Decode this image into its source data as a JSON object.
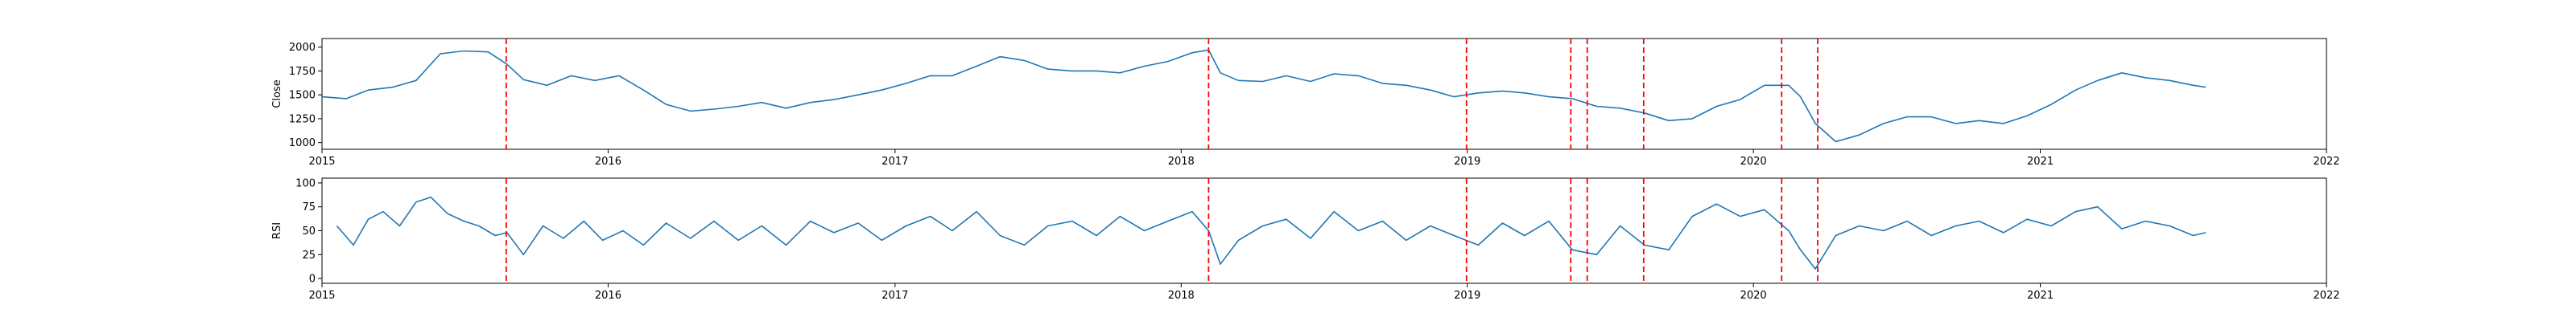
{
  "chart_data": [
    {
      "type": "line",
      "ylabel": "Close",
      "xlim": [
        "2015-01-01",
        "2022-01-01"
      ],
      "ylim": [
        930,
        2090
      ],
      "yticks": [
        1000,
        1250,
        1500,
        1750,
        2000
      ],
      "ytick_labels": [
        "1000",
        "1250",
        "1500",
        "1750",
        "2000"
      ],
      "xticks": [
        "2015-01-01",
        "2016-01-01",
        "2017-01-01",
        "2018-01-01",
        "2019-01-01",
        "2020-01-01",
        "2021-01-01",
        "2022-01-01"
      ],
      "xtick_labels": [
        "2015",
        "2016",
        "2017",
        "2018",
        "2019",
        "2020",
        "2021",
        "2022"
      ],
      "grid": false,
      "line_color": "#1f77b4",
      "marker_color": "#ff0000",
      "series": [
        {
          "x": [
            "2015-01-01",
            "2015-02-01",
            "2015-03-01",
            "2015-04-01",
            "2015-05-01",
            "2015-06-01",
            "2015-07-01",
            "2015-08-01",
            "2015-08-25",
            "2015-09-15",
            "2015-10-15",
            "2015-11-15",
            "2015-12-15",
            "2016-01-15",
            "2016-02-15",
            "2016-03-15",
            "2016-04-15",
            "2016-05-15",
            "2016-06-15",
            "2016-07-15",
            "2016-08-15",
            "2016-09-15",
            "2016-10-15",
            "2016-11-15",
            "2016-12-15",
            "2017-01-15",
            "2017-02-15",
            "2017-03-15",
            "2017-04-15",
            "2017-05-15",
            "2017-06-15",
            "2017-07-15",
            "2017-08-15",
            "2017-09-15",
            "2017-10-15",
            "2017-11-15",
            "2017-12-15",
            "2018-01-15",
            "2018-02-05",
            "2018-02-20",
            "2018-03-15",
            "2018-04-15",
            "2018-05-15",
            "2018-06-15",
            "2018-07-15",
            "2018-08-15",
            "2018-09-15",
            "2018-10-15",
            "2018-11-15",
            "2018-12-15",
            "2019-01-15",
            "2019-02-15",
            "2019-03-15",
            "2019-04-15",
            "2019-05-15",
            "2019-06-15",
            "2019-07-15",
            "2019-08-15",
            "2019-09-15",
            "2019-10-15",
            "2019-11-15",
            "2019-12-15",
            "2020-01-15",
            "2020-02-15",
            "2020-03-01",
            "2020-03-20",
            "2020-04-15",
            "2020-05-15",
            "2020-06-15",
            "2020-07-15",
            "2020-08-15",
            "2020-09-15",
            "2020-10-15",
            "2020-11-15",
            "2020-12-15",
            "2021-01-15",
            "2021-02-15",
            "2021-03-15",
            "2021-04-15",
            "2021-05-15",
            "2021-06-15",
            "2021-07-15",
            "2021-07-31"
          ],
          "y": [
            1480,
            1460,
            1550,
            1580,
            1650,
            1930,
            1960,
            1950,
            1820,
            1660,
            1600,
            1700,
            1650,
            1700,
            1550,
            1400,
            1330,
            1350,
            1380,
            1420,
            1360,
            1420,
            1450,
            1500,
            1550,
            1620,
            1700,
            1700,
            1800,
            1900,
            1860,
            1770,
            1750,
            1750,
            1730,
            1800,
            1850,
            1940,
            1970,
            1730,
            1650,
            1640,
            1700,
            1640,
            1720,
            1700,
            1620,
            1600,
            1550,
            1480,
            1520,
            1540,
            1520,
            1480,
            1460,
            1380,
            1360,
            1310,
            1230,
            1250,
            1380,
            1450,
            1600,
            1600,
            1480,
            1200,
            1010,
            1080,
            1200,
            1270,
            1270,
            1200,
            1230,
            1200,
            1280,
            1400,
            1550,
            1650,
            1730,
            1680,
            1650,
            1600,
            1580
          ]
        }
      ]
    },
    {
      "type": "line",
      "ylabel": "RSI",
      "xlim": [
        "2015-01-01",
        "2022-01-01"
      ],
      "ylim": [
        -5,
        105
      ],
      "yticks": [
        0,
        25,
        50,
        75,
        100
      ],
      "ytick_labels": [
        "0",
        "25",
        "50",
        "75",
        "100"
      ],
      "xticks": [
        "2015-01-01",
        "2016-01-01",
        "2017-01-01",
        "2018-01-01",
        "2019-01-01",
        "2020-01-01",
        "2021-01-01",
        "2022-01-01"
      ],
      "xtick_labels": [
        "2015",
        "2016",
        "2017",
        "2018",
        "2019",
        "2020",
        "2021",
        "2022"
      ],
      "grid": false,
      "line_color": "#1f77b4",
      "marker_color": "#ff0000",
      "series": [
        {
          "x": [
            "2015-01-20",
            "2015-02-10",
            "2015-03-01",
            "2015-03-20",
            "2015-04-10",
            "2015-05-01",
            "2015-05-20",
            "2015-06-10",
            "2015-07-01",
            "2015-07-20",
            "2015-08-10",
            "2015-08-25",
            "2015-09-15",
            "2015-10-10",
            "2015-11-05",
            "2015-12-01",
            "2015-12-25",
            "2016-01-20",
            "2016-02-15",
            "2016-03-15",
            "2016-04-15",
            "2016-05-15",
            "2016-06-15",
            "2016-07-15",
            "2016-08-15",
            "2016-09-15",
            "2016-10-15",
            "2016-11-15",
            "2016-12-15",
            "2017-01-15",
            "2017-02-15",
            "2017-03-15",
            "2017-04-15",
            "2017-05-15",
            "2017-06-15",
            "2017-07-15",
            "2017-08-15",
            "2017-09-15",
            "2017-10-15",
            "2017-11-15",
            "2017-12-15",
            "2018-01-15",
            "2018-02-05",
            "2018-02-20",
            "2018-03-15",
            "2018-04-15",
            "2018-05-15",
            "2018-06-15",
            "2018-07-15",
            "2018-08-15",
            "2018-09-15",
            "2018-10-15",
            "2018-11-15",
            "2018-12-15",
            "2019-01-15",
            "2019-02-15",
            "2019-03-15",
            "2019-04-15",
            "2019-05-15",
            "2019-06-15",
            "2019-07-15",
            "2019-08-15",
            "2019-09-15",
            "2019-10-15",
            "2019-11-15",
            "2019-12-15",
            "2020-01-15",
            "2020-02-15",
            "2020-03-01",
            "2020-03-20",
            "2020-04-15",
            "2020-05-15",
            "2020-06-15",
            "2020-07-15",
            "2020-08-15",
            "2020-09-15",
            "2020-10-15",
            "2020-11-15",
            "2020-12-15",
            "2021-01-15",
            "2021-02-15",
            "2021-03-15",
            "2021-04-15",
            "2021-05-15",
            "2021-06-15",
            "2021-07-15",
            "2021-07-31"
          ],
          "y": [
            55,
            35,
            62,
            70,
            55,
            80,
            85,
            68,
            60,
            55,
            45,
            48,
            25,
            55,
            42,
            60,
            40,
            50,
            35,
            58,
            42,
            60,
            40,
            55,
            35,
            60,
            48,
            58,
            40,
            55,
            65,
            50,
            70,
            45,
            35,
            55,
            60,
            45,
            65,
            50,
            60,
            70,
            50,
            15,
            40,
            55,
            62,
            42,
            70,
            50,
            60,
            40,
            55,
            45,
            35,
            58,
            45,
            60,
            30,
            25,
            55,
            35,
            30,
            65,
            78,
            65,
            72,
            50,
            30,
            10,
            45,
            55,
            50,
            60,
            45,
            55,
            60,
            48,
            62,
            55,
            70,
            75,
            52,
            60,
            55,
            45,
            48
          ]
        }
      ]
    }
  ],
  "event_dates": [
    "2015-08-24",
    "2018-02-05",
    "2018-12-31",
    "2019-05-13",
    "2019-06-03",
    "2019-08-14",
    "2020-02-06",
    "2020-03-23"
  ]
}
